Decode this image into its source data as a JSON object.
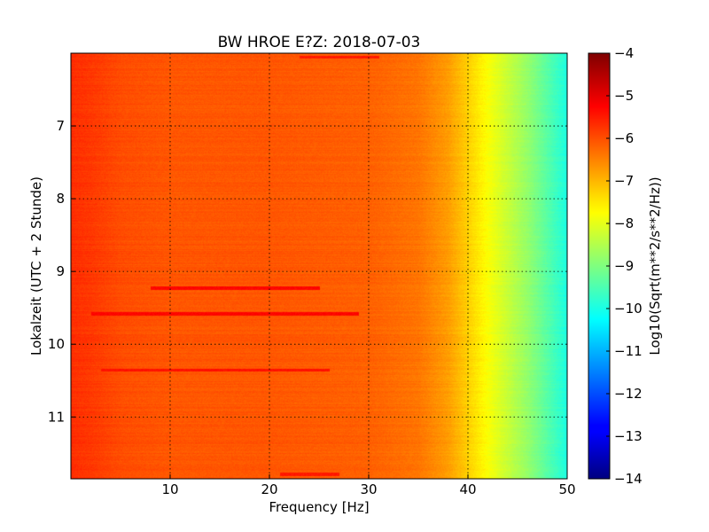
{
  "chart_data": {
    "type": "heatmap",
    "title": "BW HROE E?Z: 2018-07-03",
    "xlabel": "Frequency [Hz]",
    "ylabel": "Lokalzeit (UTC + 2 Stunde)",
    "colorbar_label": "Log10(Sqrt(m**2/s**2/Hz))",
    "xlim": [
      0,
      50
    ],
    "ylim": [
      11.85,
      6.0
    ],
    "y_axis_inverted": true,
    "x_ticks": [
      10,
      20,
      30,
      40,
      50
    ],
    "y_ticks": [
      7,
      8,
      9,
      10,
      11
    ],
    "colorbar_range": [
      -14,
      -4
    ],
    "colorbar_ticks": [
      -4,
      -5,
      -6,
      -7,
      -8,
      -9,
      -10,
      -11,
      -12,
      -13,
      -14
    ],
    "colormap": "jet",
    "grid": true,
    "value_profile_by_frequency": {
      "frequency_hz": [
        0,
        2,
        5,
        10,
        20,
        30,
        35,
        38,
        40,
        42,
        44,
        46,
        48,
        50
      ],
      "log10_amplitude": [
        -5.7,
        -5.8,
        -6.0,
        -6.1,
        -6.1,
        -6.2,
        -6.4,
        -6.8,
        -7.3,
        -7.8,
        -8.3,
        -8.8,
        -9.4,
        -10.0
      ]
    },
    "strong_bands": [
      {
        "time": 9.22,
        "freq_from": 8,
        "freq_to": 25,
        "value": -5.3
      },
      {
        "time": 9.58,
        "freq_from": 2,
        "freq_to": 29,
        "value": -5.3
      },
      {
        "time": 10.35,
        "freq_from": 3,
        "freq_to": 26,
        "value": -5.4
      },
      {
        "time": 6.05,
        "freq_from": 23,
        "freq_to": 31,
        "value": -5.5
      },
      {
        "time": 11.78,
        "freq_from": 21,
        "freq_to": 27,
        "value": -5.5
      }
    ]
  },
  "colors": {
    "grid": "#000000",
    "background": "#ffffff"
  }
}
